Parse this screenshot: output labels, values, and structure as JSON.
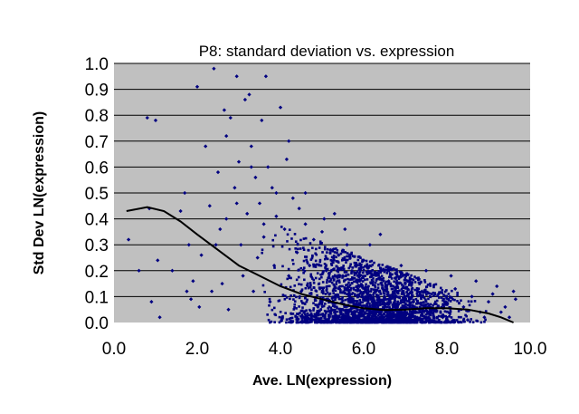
{
  "chart_data": {
    "type": "scatter",
    "title": "P8: standard deviation vs. expression",
    "xlabel": "Ave. LN(expression)",
    "ylabel": "Std Dev LN(expression)",
    "xlim": [
      0,
      10
    ],
    "ylim": [
      0,
      1
    ],
    "x_ticks": [
      "0.0",
      "2.0",
      "4.0",
      "6.0",
      "8.0",
      "10.0"
    ],
    "y_ticks": [
      "0.0",
      "0.1",
      "0.2",
      "0.3",
      "0.4",
      "0.5",
      "0.6",
      "0.7",
      "0.8",
      "0.9",
      "1.0"
    ],
    "grid": "horizontal",
    "legend": "none",
    "colors": {
      "plot_background": "#c0c0c0",
      "points": "#000080",
      "trend": "#000000",
      "gridlines": "#000000"
    },
    "series": [
      {
        "kind": "points",
        "points": [
          [
            0.35,
            0.32
          ],
          [
            0.6,
            0.2
          ],
          [
            0.8,
            0.79
          ],
          [
            0.85,
            0.44
          ],
          [
            0.9,
            0.08
          ],
          [
            1.0,
            0.78
          ],
          [
            1.05,
            0.24
          ],
          [
            1.1,
            0.02
          ],
          [
            1.4,
            0.2
          ],
          [
            1.6,
            0.43
          ],
          [
            1.7,
            0.5
          ],
          [
            1.75,
            0.12
          ],
          [
            1.8,
            0.3
          ],
          [
            1.85,
            0.09
          ],
          [
            1.9,
            0.16
          ],
          [
            2.0,
            0.91
          ],
          [
            2.05,
            0.06
          ],
          [
            2.1,
            0.26
          ],
          [
            2.2,
            0.68
          ],
          [
            2.3,
            0.45
          ],
          [
            2.35,
            0.12
          ],
          [
            2.4,
            0.98
          ],
          [
            2.5,
            0.58
          ],
          [
            2.55,
            0.36
          ],
          [
            2.6,
            0.15
          ],
          [
            2.65,
            0.82
          ],
          [
            2.7,
            0.72
          ],
          [
            2.75,
            0.05
          ],
          [
            2.8,
            0.79
          ],
          [
            2.9,
            0.52
          ],
          [
            2.95,
            0.95
          ],
          [
            3.0,
            0.62
          ],
          [
            3.05,
            0.3
          ],
          [
            3.1,
            0.18
          ],
          [
            3.15,
            0.86
          ],
          [
            3.2,
            0.42
          ],
          [
            3.25,
            0.88
          ],
          [
            3.3,
            0.68
          ],
          [
            3.35,
            0.12
          ],
          [
            3.4,
            0.56
          ],
          [
            3.45,
            0.25
          ],
          [
            3.5,
            0.46
          ],
          [
            3.55,
            0.78
          ],
          [
            3.6,
            0.33
          ],
          [
            3.65,
            0.95
          ],
          [
            3.7,
            0.6
          ],
          [
            3.75,
            0.08
          ],
          [
            3.8,
            0.52
          ],
          [
            3.85,
            0.22
          ],
          [
            3.9,
            0.41
          ],
          [
            4.0,
            0.83
          ],
          [
            4.1,
            0.36
          ],
          [
            4.2,
            0.18
          ],
          [
            4.3,
            0.48
          ],
          [
            4.4,
            0.27
          ],
          [
            4.5,
            0.12
          ],
          [
            4.6,
            0.38
          ],
          [
            4.7,
            0.22
          ],
          [
            4.8,
            0.32
          ],
          [
            4.9,
            0.06
          ],
          [
            5.0,
            0.35
          ],
          [
            5.1,
            0.2
          ],
          [
            5.2,
            0.28
          ],
          [
            5.3,
            0.1
          ],
          [
            5.4,
            0.26
          ],
          [
            5.5,
            0.18
          ],
          [
            5.6,
            0.3
          ],
          [
            5.7,
            0.08
          ],
          [
            5.8,
            0.22
          ],
          [
            5.9,
            0.14
          ],
          [
            6.0,
            0.24
          ],
          [
            6.1,
            0.06
          ],
          [
            6.2,
            0.18
          ],
          [
            6.3,
            0.12
          ],
          [
            6.4,
            0.2
          ],
          [
            6.5,
            0.05
          ],
          [
            6.6,
            0.16
          ],
          [
            6.7,
            0.1
          ],
          [
            6.8,
            0.14
          ],
          [
            6.9,
            0.04
          ],
          [
            7.0,
            0.15
          ],
          [
            7.2,
            0.08
          ],
          [
            7.4,
            0.12
          ],
          [
            7.6,
            0.05
          ],
          [
            7.8,
            0.11
          ],
          [
            8.0,
            0.07
          ],
          [
            8.2,
            0.13
          ],
          [
            8.4,
            0.06
          ],
          [
            8.6,
            0.1
          ],
          [
            8.8,
            0.04
          ],
          [
            9.0,
            0.08
          ],
          [
            9.2,
            0.14
          ],
          [
            9.4,
            0.06
          ],
          [
            9.6,
            0.12
          ],
          [
            9.65,
            0.09
          ],
          [
            9.5,
            0.02
          ],
          [
            9.3,
            0.04
          ],
          [
            8.9,
            0.02
          ],
          [
            8.5,
            0.01
          ],
          [
            7.9,
            0.02
          ],
          [
            4.2,
            0.7
          ],
          [
            3.3,
            0.6
          ],
          [
            3.9,
            0.5
          ],
          [
            4.15,
            0.63
          ],
          [
            3.6,
            0.38
          ],
          [
            2.7,
            0.4
          ],
          [
            2.45,
            0.3
          ],
          [
            2.95,
            0.46
          ],
          [
            4.45,
            0.44
          ],
          [
            5.05,
            0.4
          ],
          [
            5.55,
            0.36
          ],
          [
            6.15,
            0.3
          ],
          [
            6.9,
            0.22
          ],
          [
            7.5,
            0.2
          ],
          [
            8.1,
            0.18
          ],
          [
            8.7,
            0.16
          ],
          [
            9.1,
            0.11
          ],
          [
            4.6,
            0.5
          ],
          [
            5.3,
            0.42
          ],
          [
            6.4,
            0.34
          ]
        ],
        "density_note": "thousands of points concentrated between x≈3.5–7 and y≈0–0.3"
      },
      {
        "kind": "trend",
        "points": [
          [
            0.3,
            0.43
          ],
          [
            0.8,
            0.445
          ],
          [
            1.2,
            0.43
          ],
          [
            1.6,
            0.39
          ],
          [
            2.0,
            0.34
          ],
          [
            2.5,
            0.28
          ],
          [
            3.0,
            0.22
          ],
          [
            3.5,
            0.18
          ],
          [
            4.0,
            0.14
          ],
          [
            4.5,
            0.11
          ],
          [
            5.0,
            0.09
          ],
          [
            5.5,
            0.07
          ],
          [
            6.0,
            0.055
          ],
          [
            6.5,
            0.048
          ],
          [
            7.0,
            0.05
          ],
          [
            7.5,
            0.055
          ],
          [
            8.0,
            0.055
          ],
          [
            8.5,
            0.05
          ],
          [
            9.0,
            0.035
          ],
          [
            9.3,
            0.02
          ],
          [
            9.6,
            0.0
          ]
        ]
      }
    ]
  }
}
